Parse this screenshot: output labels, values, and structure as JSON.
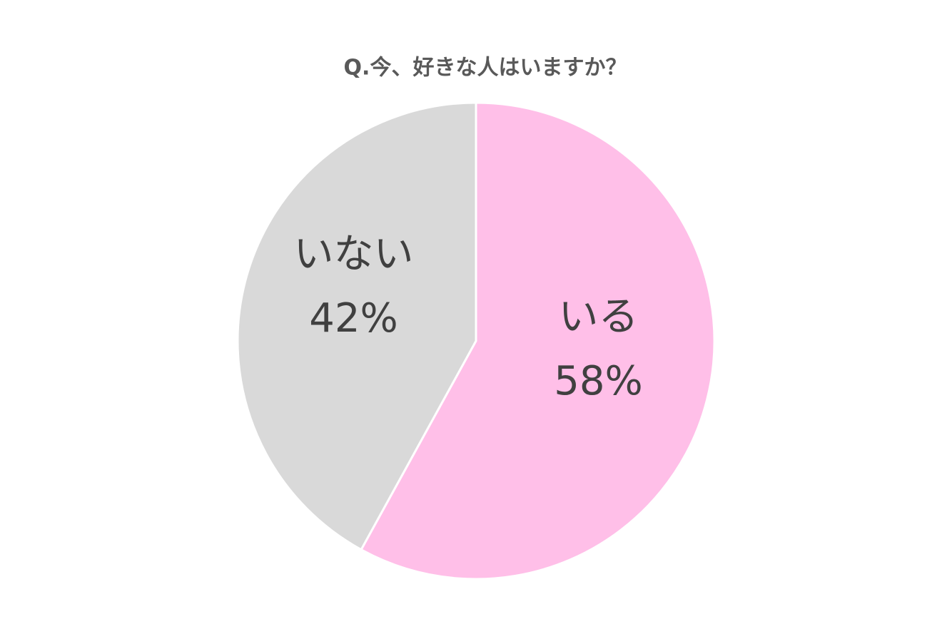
{
  "chart_data": {
    "type": "pie",
    "title": "Q.今、好きな人はいますか？",
    "categories": [
      "いる",
      "いない"
    ],
    "values": [
      58,
      42
    ],
    "value_labels": [
      "58%",
      "42%"
    ],
    "colors": [
      "#ffbfe8",
      "#d9d9d9"
    ]
  }
}
